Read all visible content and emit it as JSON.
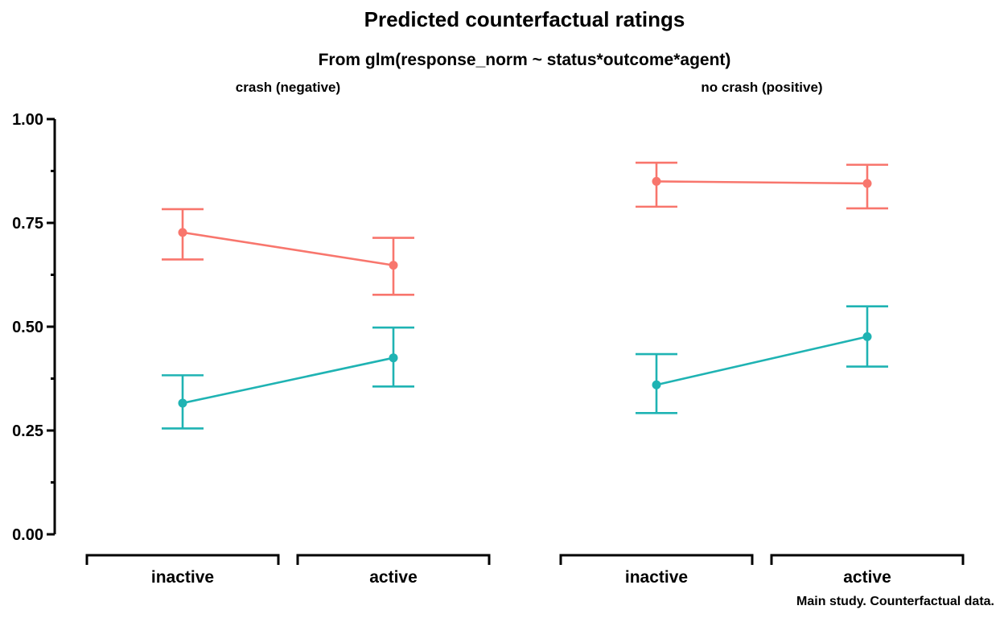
{
  "chart_data": {
    "type": "line",
    "title": "Predicted counterfactual ratings",
    "subtitle": "From glm(response_norm ~ status*outcome*agent)",
    "caption": "Main study. Counterfactual data.",
    "xlabel": "",
    "ylabel": "",
    "ylim": [
      0,
      1
    ],
    "yticks": [
      "0.00",
      "0.25",
      "0.50",
      "0.75",
      "1.00"
    ],
    "categories": [
      "inactive",
      "active"
    ],
    "grid": false,
    "legend": "none",
    "facets": [
      {
        "label": "crash (negative)",
        "series": [
          {
            "color": "#F8766D",
            "values": [
              0.727,
              0.648
            ],
            "lower": [
              0.662,
              0.577
            ],
            "upper": [
              0.783,
              0.714
            ]
          },
          {
            "color": "#1FB3B3",
            "values": [
              0.316,
              0.425
            ],
            "lower": [
              0.255,
              0.356
            ],
            "upper": [
              0.383,
              0.498
            ]
          }
        ]
      },
      {
        "label": "no crash (positive)",
        "series": [
          {
            "color": "#F8766D",
            "values": [
              0.85,
              0.845
            ],
            "lower": [
              0.789,
              0.785
            ],
            "upper": [
              0.895,
              0.89
            ]
          },
          {
            "color": "#1FB3B3",
            "values": [
              0.36,
              0.476
            ],
            "lower": [
              0.292,
              0.404
            ],
            "upper": [
              0.434,
              0.549
            ]
          }
        ]
      }
    ]
  }
}
